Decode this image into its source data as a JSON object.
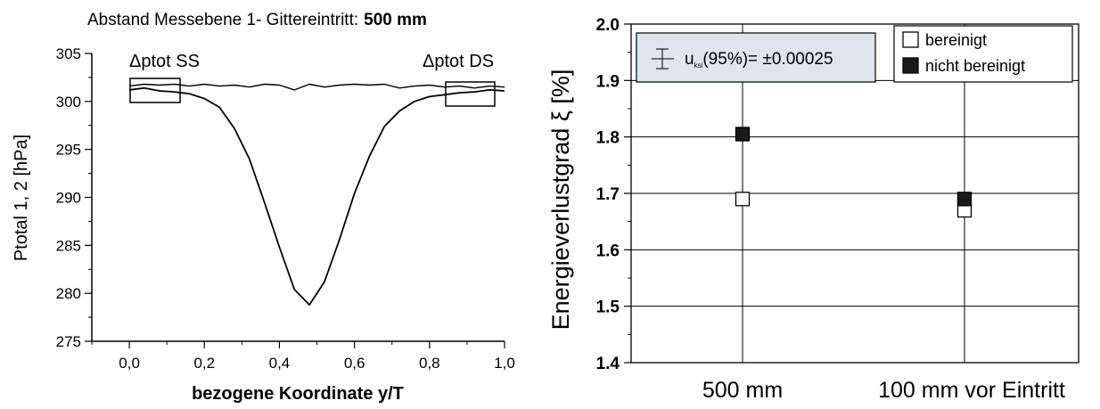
{
  "left_chart": {
    "title_prefix": "Abstand Messebene 1- Gittereintritt:",
    "title_value": "500 mm",
    "annotation_ss": "Δptot SS",
    "annotation_ds": "Δptot DS",
    "chart_data": {
      "type": "line",
      "title": "Abstand Messebene 1- Gittereintritt: 500 mm",
      "xlabel": "bezogene Koordinate y/T",
      "ylabel": "Ptotal 1, 2 [hPa]",
      "xlim": [
        -0.1,
        1.0
      ],
      "ylim": [
        275,
        305
      ],
      "x_ticks": [
        "0,0",
        "0,2",
        "0,4",
        "0,6",
        "0,8",
        "1,0"
      ],
      "y_ticks": [
        "275",
        "280",
        "285",
        "290",
        "295",
        "300",
        "305"
      ],
      "grid": false,
      "series": [
        {
          "x": [
            0.0,
            0.04,
            0.08,
            0.12,
            0.16,
            0.2,
            0.24,
            0.28,
            0.32,
            0.36,
            0.4,
            0.44,
            0.48,
            0.52,
            0.56,
            0.6,
            0.64,
            0.68,
            0.72,
            0.76,
            0.8,
            0.84,
            0.88,
            0.92,
            0.96,
            1.0
          ],
          "values": [
            301.6,
            301.8,
            301.7,
            301.8,
            301.6,
            301.8,
            301.6,
            301.7,
            301.5,
            301.8,
            301.7,
            301.2,
            301.8,
            301.5,
            301.7,
            301.8,
            301.7,
            301.8,
            301.4,
            301.6,
            301.7,
            301.5,
            301.6,
            301.4,
            301.6,
            301.5
          ]
        },
        {
          "x": [
            0.0,
            0.04,
            0.08,
            0.12,
            0.16,
            0.2,
            0.24,
            0.28,
            0.32,
            0.36,
            0.4,
            0.44,
            0.48,
            0.52,
            0.56,
            0.6,
            0.64,
            0.68,
            0.72,
            0.76,
            0.8,
            0.84,
            0.88,
            0.92,
            0.96,
            1.0
          ],
          "values": [
            301.2,
            301.4,
            301.1,
            301.0,
            300.8,
            300.3,
            299.4,
            297.2,
            294.0,
            289.5,
            284.8,
            280.4,
            278.8,
            281.2,
            285.6,
            290.4,
            294.3,
            297.4,
            299.0,
            300.0,
            300.5,
            300.7,
            300.9,
            301.0,
            301.2,
            301.1
          ]
        }
      ]
    }
  },
  "right_chart": {
    "uncertainty_text": "u",
    "uncertainty_sub": "ksi",
    "uncertainty_rest": "(95%)= ±0.00025",
    "chart_data": {
      "type": "scatter",
      "title": "",
      "xlabel": "",
      "ylabel": "Energieverlustgrad ξ [%]",
      "categories": [
        "500 mm",
        "100 mm vor Eintritt"
      ],
      "ylim": [
        1.4,
        2.0
      ],
      "y_ticks": [
        "1.4",
        "1.5",
        "1.6",
        "1.7",
        "1.8",
        "1.9",
        "2.0"
      ],
      "grid": true,
      "legend_position": "top-right",
      "series": [
        {
          "name": "bereinigt",
          "values": [
            1.69,
            1.67
          ],
          "color": "#ffffff"
        },
        {
          "name": "nicht bereinigt",
          "values": [
            1.805,
            1.69
          ],
          "color": "#1a1a1a"
        }
      ]
    }
  }
}
